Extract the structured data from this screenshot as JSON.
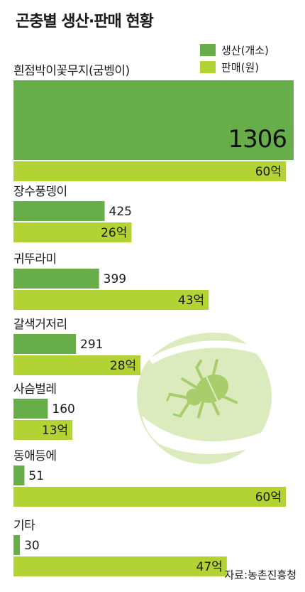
{
  "title": "곤충별 생산·판매 현황",
  "source": "자료:농촌진흥청",
  "colors": {
    "production": "#67ae4b",
    "sales": "#b3d234",
    "illustration_bg": "#dcebbd",
    "illustration_fg": "#a8cd6b",
    "illustration_hand": "#ffffff"
  },
  "legend": [
    {
      "label": "생산(개소)",
      "color": "#67ae4b"
    },
    {
      "label": "판매(원)",
      "color": "#b3d234"
    }
  ],
  "chart_data": {
    "type": "bar",
    "orientation": "horizontal",
    "title": "곤충별 생산·판매 현황",
    "categories": [
      "흰점박이꽃무지(굼벵이)",
      "장수풍뎅이",
      "귀뚜라미",
      "갈색거저리",
      "사슴벌레",
      "동애등에",
      "기타"
    ],
    "series": [
      {
        "name": "생산(개소)",
        "values": [
          1306,
          425,
          399,
          291,
          160,
          51,
          30
        ],
        "labels": [
          "1306",
          "425",
          "399",
          "291",
          "160",
          "51",
          "30"
        ]
      },
      {
        "name": "판매(원)",
        "values": [
          60,
          26,
          43,
          28,
          13,
          60,
          47
        ],
        "labels": [
          "60억",
          "26억",
          "43억",
          "28억",
          "13억",
          "60억",
          "47억"
        ]
      }
    ]
  },
  "illustration": {
    "icon": "beetle-in-hands-icon"
  }
}
